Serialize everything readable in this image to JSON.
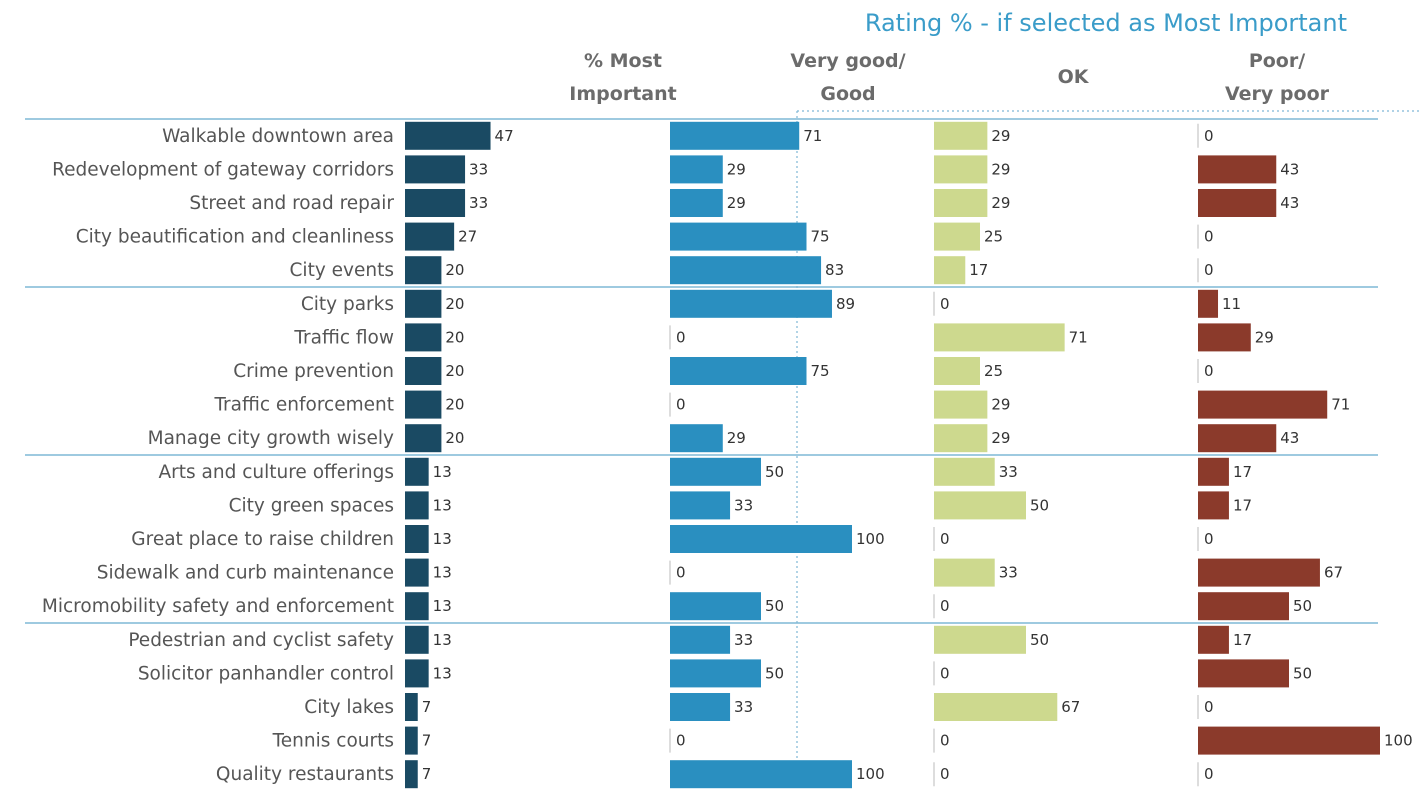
{
  "chart_data": {
    "type": "bar",
    "group_title": "Rating % - if selected as Most Important",
    "column_headers": [
      [
        "% Most",
        "Important"
      ],
      [
        "Very good/",
        "Good"
      ],
      [
        "OK"
      ],
      [
        "Poor/",
        "Very poor"
      ]
    ],
    "categories": [
      "Walkable downtown area",
      "Redevelopment of gateway corridors",
      "Street and road repair",
      "City beautification and cleanliness",
      "City events",
      "City parks",
      "Traffic flow",
      "Crime prevention",
      "Traffic enforcement",
      "Manage city growth wisely",
      "Arts and culture offerings",
      "City green spaces",
      "Great place to raise children",
      "Sidewalk and curb maintenance",
      "Micromobility safety and enforcement",
      "Pedestrian and cyclist safety",
      "Solicitor panhandler control",
      "City lakes",
      "Tennis courts",
      "Quality restaurants"
    ],
    "series": [
      {
        "values": [
          47,
          33,
          33,
          27,
          20,
          20,
          20,
          20,
          20,
          20,
          13,
          13,
          13,
          13,
          13,
          13,
          13,
          7,
          7,
          7
        ],
        "color": "#1a4a63"
      },
      {
        "values": [
          71,
          29,
          29,
          75,
          83,
          89,
          0,
          75,
          0,
          29,
          50,
          33,
          100,
          0,
          50,
          33,
          50,
          33,
          0,
          100
        ],
        "color": "#2a8fc0"
      },
      {
        "values": [
          29,
          29,
          29,
          25,
          17,
          0,
          71,
          25,
          29,
          29,
          33,
          50,
          0,
          33,
          0,
          50,
          0,
          67,
          0,
          0
        ],
        "color": "#cdd98e"
      },
      {
        "values": [
          0,
          43,
          43,
          0,
          0,
          11,
          29,
          0,
          71,
          43,
          17,
          17,
          0,
          67,
          50,
          17,
          50,
          0,
          100,
          0
        ],
        "color": "#8b3a2b"
      }
    ],
    "group_separators_after": [
      4,
      9,
      14
    ],
    "colors": {
      "title": "#3a9cc9",
      "separator": "#7fb8d6",
      "dotted_line": "#7fb8d6",
      "label_text": "#555555",
      "header_text": "#6b6b6b"
    }
  }
}
